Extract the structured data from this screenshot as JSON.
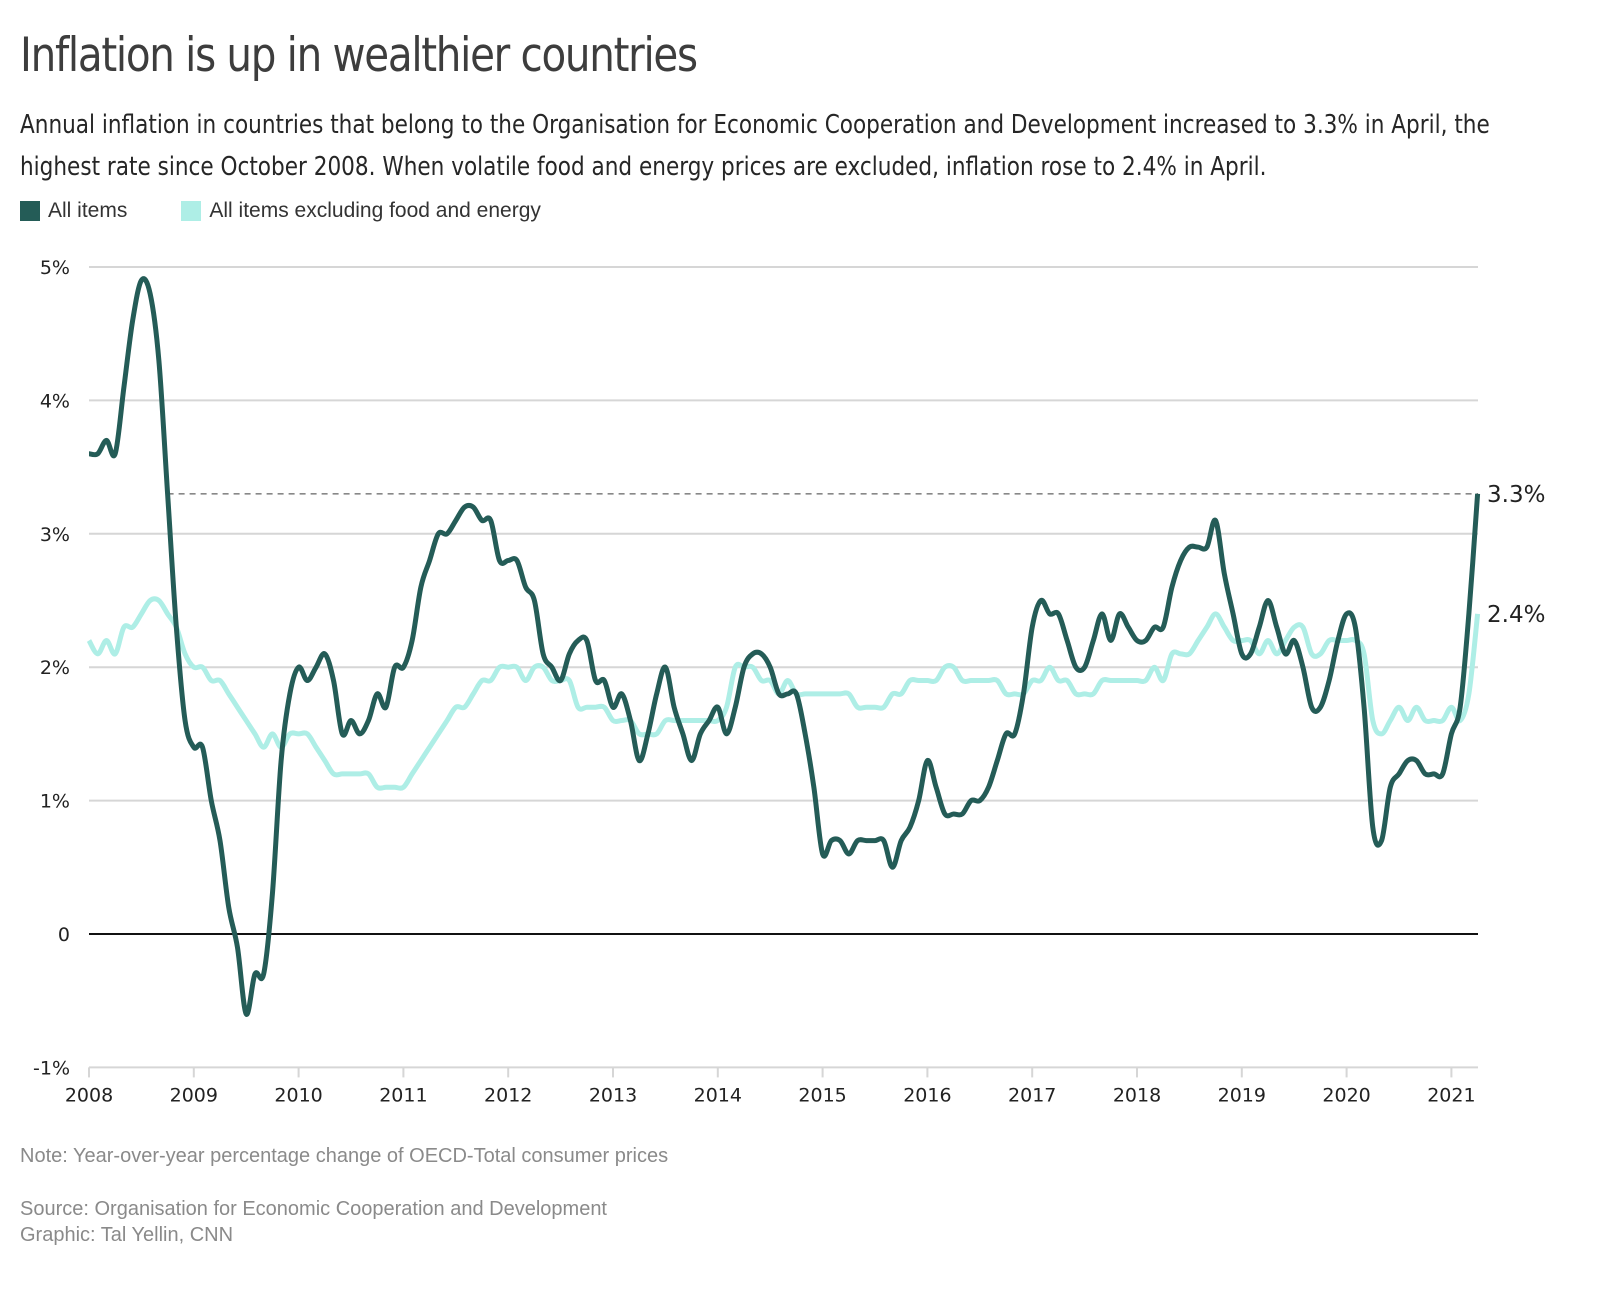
{
  "header": {
    "title": "Inflation is up in wealthier countries",
    "subtitle": "Annual inflation in countries that belong to the Organisation for Economic Cooperation and Development increased to 3.3% in April, the highest rate since October 2008. When volatile food and energy prices are excluded, inflation rose to 2.4% in April."
  },
  "legend": [
    {
      "label": "All items",
      "color": "#245c57"
    },
    {
      "label": "All items excluding food and energy",
      "color": "#aeeee6"
    }
  ],
  "footer": {
    "note": "Note: Year-over-year percentage change of OECD-Total consumer prices",
    "source": "Source: Organisation for Economic Cooperation and Development",
    "credit": "Graphic: Tal Yellin, CNN"
  },
  "chart_data": {
    "type": "line",
    "title": "Inflation is up in wealthier countries",
    "xlabel": "",
    "ylabel": "",
    "x_start": "2008-01",
    "x_end": "2021-04",
    "frequency": "monthly",
    "ylim": [
      -1,
      5
    ],
    "yticks": [
      -1,
      0,
      1,
      2,
      3,
      4,
      5
    ],
    "ytick_labels": [
      "-1%",
      "0",
      "1%",
      "2%",
      "3%",
      "4%",
      "5%"
    ],
    "xticks": [
      2008,
      2009,
      2010,
      2011,
      2012,
      2013,
      2014,
      2015,
      2016,
      2017,
      2018,
      2019,
      2020,
      2021
    ],
    "xtick_labels": [
      "2008",
      "2009",
      "2010",
      "2011",
      "2012",
      "2013",
      "2014",
      "2015",
      "2016",
      "2017",
      "2018",
      "2019",
      "2020",
      "2021"
    ],
    "grid": true,
    "zero_line": true,
    "reference_line": {
      "value": 3.3,
      "from": "2008-10",
      "style": "dashed"
    },
    "end_labels": [
      {
        "series": "All items",
        "text": "3.3%"
      },
      {
        "series": "All items excluding food and energy",
        "text": "2.4%"
      }
    ],
    "legend_position": "top-left",
    "series": [
      {
        "name": "All items",
        "color": "#245c57",
        "values": [
          3.6,
          3.6,
          3.7,
          3.6,
          4.1,
          4.6,
          4.9,
          4.8,
          4.3,
          3.3,
          2.3,
          1.6,
          1.4,
          1.4,
          1.0,
          0.7,
          0.2,
          -0.1,
          -0.6,
          -0.3,
          -0.3,
          0.3,
          1.3,
          1.8,
          2.0,
          1.9,
          2.0,
          2.1,
          1.9,
          1.5,
          1.6,
          1.5,
          1.6,
          1.8,
          1.7,
          2.0,
          2.0,
          2.2,
          2.6,
          2.8,
          3.0,
          3.0,
          3.1,
          3.2,
          3.2,
          3.1,
          3.1,
          2.8,
          2.8,
          2.8,
          2.6,
          2.5,
          2.1,
          2.0,
          1.9,
          2.1,
          2.2,
          2.2,
          1.9,
          1.9,
          1.7,
          1.8,
          1.6,
          1.3,
          1.5,
          1.8,
          2.0,
          1.7,
          1.5,
          1.3,
          1.5,
          1.6,
          1.7,
          1.5,
          1.7,
          2.0,
          2.1,
          2.1,
          2.0,
          1.8,
          1.8,
          1.8,
          1.5,
          1.1,
          0.6,
          0.7,
          0.7,
          0.6,
          0.7,
          0.7,
          0.7,
          0.7,
          0.5,
          0.7,
          0.8,
          1.0,
          1.3,
          1.1,
          0.9,
          0.9,
          0.9,
          1.0,
          1.0,
          1.1,
          1.3,
          1.5,
          1.5,
          1.8,
          2.3,
          2.5,
          2.4,
          2.4,
          2.2,
          2.0,
          2.0,
          2.2,
          2.4,
          2.2,
          2.4,
          2.3,
          2.2,
          2.2,
          2.3,
          2.3,
          2.6,
          2.8,
          2.9,
          2.9,
          2.9,
          3.1,
          2.7,
          2.4,
          2.1,
          2.1,
          2.3,
          2.5,
          2.3,
          2.1,
          2.2,
          2.0,
          1.7,
          1.7,
          1.9,
          2.2,
          2.4,
          2.3,
          1.7,
          0.8,
          0.7,
          1.1,
          1.2,
          1.3,
          1.3,
          1.2,
          1.2,
          1.2,
          1.5,
          1.7,
          2.4,
          3.3
        ]
      },
      {
        "name": "All items excluding food and energy",
        "color": "#aeeee6",
        "values": [
          2.2,
          2.1,
          2.2,
          2.1,
          2.3,
          2.3,
          2.4,
          2.5,
          2.5,
          2.4,
          2.3,
          2.1,
          2.0,
          2.0,
          1.9,
          1.9,
          1.8,
          1.7,
          1.6,
          1.5,
          1.4,
          1.5,
          1.4,
          1.5,
          1.5,
          1.5,
          1.4,
          1.3,
          1.2,
          1.2,
          1.2,
          1.2,
          1.2,
          1.1,
          1.1,
          1.1,
          1.1,
          1.2,
          1.3,
          1.4,
          1.5,
          1.6,
          1.7,
          1.7,
          1.8,
          1.9,
          1.9,
          2.0,
          2.0,
          2.0,
          1.9,
          2.0,
          2.0,
          1.9,
          1.9,
          1.9,
          1.7,
          1.7,
          1.7,
          1.7,
          1.6,
          1.6,
          1.6,
          1.5,
          1.5,
          1.5,
          1.6,
          1.6,
          1.6,
          1.6,
          1.6,
          1.6,
          1.6,
          1.7,
          2.0,
          2.0,
          2.0,
          1.9,
          1.9,
          1.8,
          1.9,
          1.8,
          1.8,
          1.8,
          1.8,
          1.8,
          1.8,
          1.8,
          1.7,
          1.7,
          1.7,
          1.7,
          1.8,
          1.8,
          1.9,
          1.9,
          1.9,
          1.9,
          2.0,
          2.0,
          1.9,
          1.9,
          1.9,
          1.9,
          1.9,
          1.8,
          1.8,
          1.8,
          1.9,
          1.9,
          2.0,
          1.9,
          1.9,
          1.8,
          1.8,
          1.8,
          1.9,
          1.9,
          1.9,
          1.9,
          1.9,
          1.9,
          2.0,
          1.9,
          2.1,
          2.1,
          2.1,
          2.2,
          2.3,
          2.4,
          2.3,
          2.2,
          2.2,
          2.2,
          2.1,
          2.2,
          2.1,
          2.2,
          2.3,
          2.3,
          2.1,
          2.1,
          2.2,
          2.2,
          2.2,
          2.2,
          2.1,
          1.6,
          1.5,
          1.6,
          1.7,
          1.6,
          1.7,
          1.6,
          1.6,
          1.6,
          1.7,
          1.6,
          1.8,
          2.4
        ]
      }
    ]
  }
}
